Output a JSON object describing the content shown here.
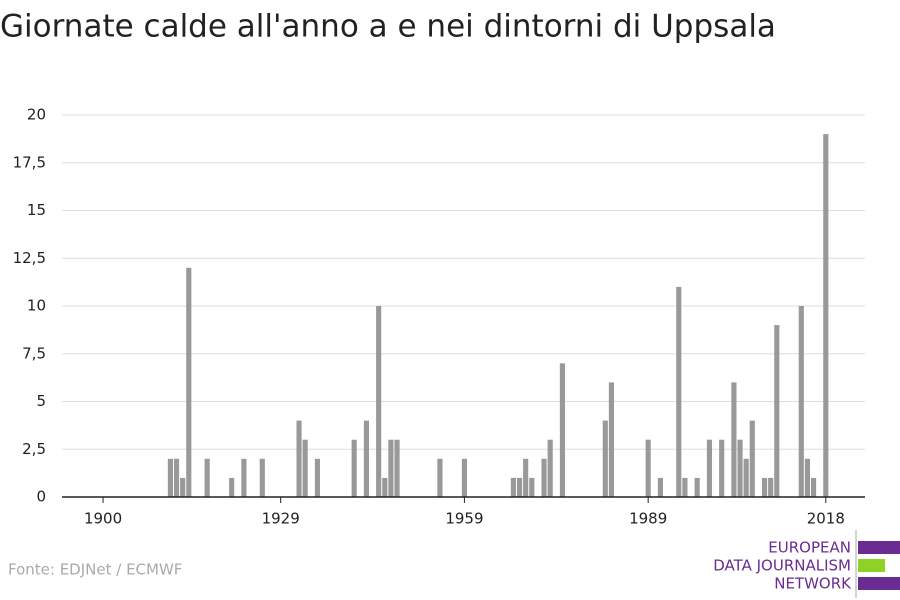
{
  "chart_data": {
    "type": "bar",
    "title": "Giornate calde all'anno a e nei dintorni di Uppsala",
    "source": "Fonte: EDJNet / ECMWF",
    "logo": [
      "EUROPEAN",
      "DATA JOURNALISM",
      "NETWORK"
    ],
    "color": "#999999",
    "x": [
      1911,
      1912,
      1913,
      1914,
      1917,
      1921,
      1923,
      1926,
      1932,
      1933,
      1935,
      1941,
      1943,
      1945,
      1946,
      1947,
      1948,
      1955,
      1959,
      1967,
      1968,
      1969,
      1970,
      1972,
      1973,
      1975,
      1982,
      1983,
      1989,
      1991,
      1994,
      1995,
      1997,
      1999,
      2001,
      2003,
      2004,
      2005,
      2006,
      2008,
      2009,
      2010,
      2014,
      2015,
      2016,
      2018
    ],
    "values": [
      2,
      2,
      1,
      12,
      2,
      1,
      2,
      2,
      4,
      3,
      2,
      3,
      4,
      10,
      1,
      3,
      3,
      2,
      2,
      1,
      1,
      2,
      1,
      2,
      3,
      7,
      4,
      6,
      3,
      1,
      11,
      1,
      1,
      3,
      3,
      6,
      3,
      2,
      4,
      1,
      1,
      9,
      10,
      2,
      1,
      19
    ],
    "xlim": [
      1893.3,
      2024.4
    ],
    "xticks": [
      1900,
      1929,
      1959,
      1989,
      2018
    ],
    "ylim": [
      0,
      20
    ],
    "yticks": [
      0,
      {
        "value": 2.5,
        "label": "2,5"
      },
      5,
      {
        "value": 7.5,
        "label": "7,5"
      },
      10,
      {
        "value": 12.5,
        "label": "12,5"
      },
      15,
      {
        "value": 17.5,
        "label": "17,5"
      },
      20
    ],
    "grid": true
  }
}
